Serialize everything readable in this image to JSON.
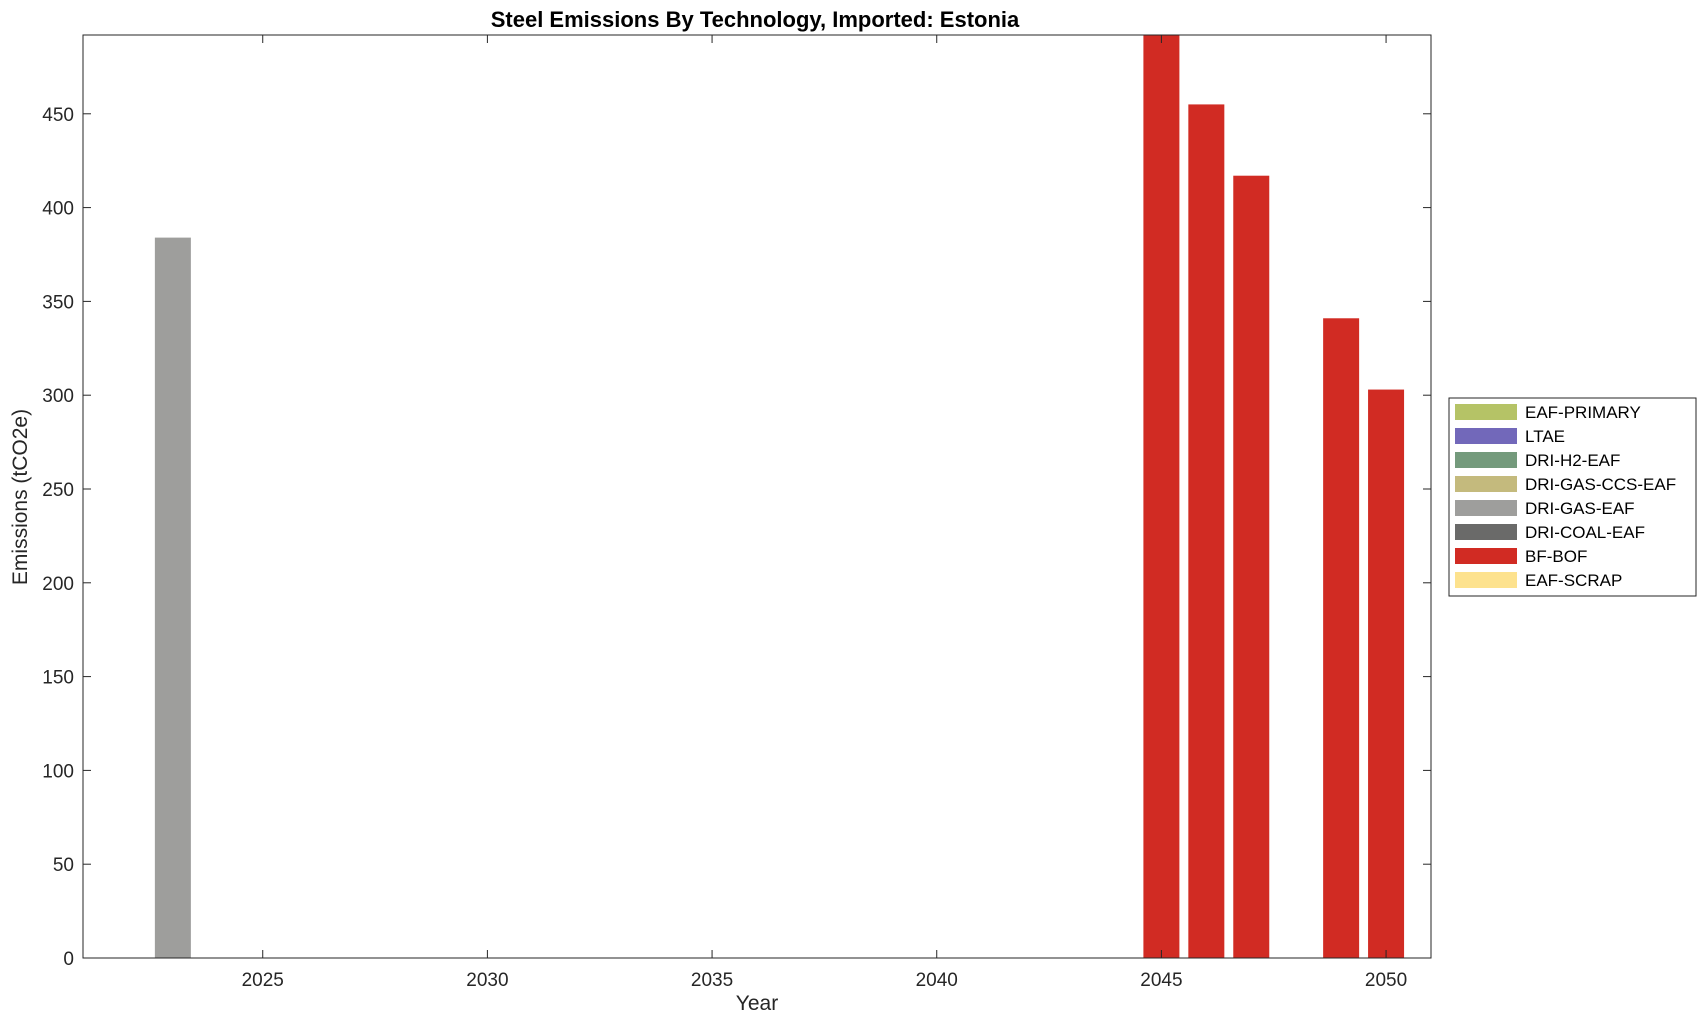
{
  "chart_data": {
    "type": "bar",
    "stacked": true,
    "title": "Steel Emissions By Technology, Imported: Estonia",
    "xlabel": "Year",
    "ylabel": "Emissions (tCO2e)",
    "xlim": [
      2021,
      2051
    ],
    "ylim": [
      0,
      492
    ],
    "xticks": [
      2025,
      2030,
      2035,
      2040,
      2045,
      2050
    ],
    "yticks": [
      0,
      50,
      100,
      150,
      200,
      250,
      300,
      350,
      400,
      450
    ],
    "grid": false,
    "legend_position": "right",
    "categories": [
      2023,
      2024,
      2025,
      2026,
      2027,
      2028,
      2029,
      2030,
      2031,
      2032,
      2033,
      2034,
      2035,
      2036,
      2037,
      2038,
      2039,
      2040,
      2041,
      2042,
      2043,
      2044,
      2045,
      2046,
      2047,
      2048,
      2049,
      2050
    ],
    "series": [
      {
        "name": "EAF-PRIMARY",
        "color": "#B5C366",
        "values": [
          0,
          0,
          0,
          0,
          0,
          0,
          0,
          0,
          0,
          0,
          0,
          0,
          0,
          0,
          0,
          0,
          0,
          0,
          0,
          0,
          0,
          0,
          0,
          0,
          0,
          0,
          0,
          0
        ]
      },
      {
        "name": "LTAE",
        "color": "#7268BA",
        "values": [
          0,
          0,
          0,
          0,
          0,
          0,
          0,
          0,
          0,
          0,
          0,
          0,
          0,
          0,
          0,
          0,
          0,
          0,
          0,
          0,
          0,
          0,
          0,
          0,
          0,
          0,
          0,
          0
        ]
      },
      {
        "name": "DRI-H2-EAF",
        "color": "#749A7C",
        "values": [
          0,
          0,
          0,
          0,
          0,
          0,
          0,
          0,
          0,
          0,
          0,
          0,
          0,
          0,
          0,
          0,
          0,
          0,
          0,
          0,
          0,
          0,
          0,
          0,
          0,
          0,
          0,
          0
        ]
      },
      {
        "name": "DRI-GAS-CCS-EAF",
        "color": "#C4BA7D",
        "values": [
          0,
          0,
          0,
          0,
          0,
          0,
          0,
          0,
          0,
          0,
          0,
          0,
          0,
          0,
          0,
          0,
          0,
          0,
          0,
          0,
          0,
          0,
          0,
          0,
          0,
          0,
          0,
          0
        ]
      },
      {
        "name": "DRI-GAS-EAF",
        "color": "#9E9E9C",
        "values": [
          384,
          0,
          0,
          0,
          0,
          0,
          0,
          0,
          0,
          0,
          0,
          0,
          0,
          0,
          0,
          0,
          0,
          0,
          0,
          0,
          0,
          0,
          0,
          0,
          0,
          0,
          0,
          0
        ]
      },
      {
        "name": "DRI-COAL-EAF",
        "color": "#6A6A69",
        "values": [
          0,
          0,
          0,
          0,
          0,
          0,
          0,
          0,
          0,
          0,
          0,
          0,
          0,
          0,
          0,
          0,
          0,
          0,
          0,
          0,
          0,
          0,
          0,
          0,
          0,
          0,
          0,
          0
        ]
      },
      {
        "name": "BF-BOF",
        "color": "#D12B23",
        "values": [
          0,
          0,
          0,
          0,
          0,
          0,
          0,
          0,
          0,
          0,
          0,
          0,
          0,
          0,
          0,
          0,
          0,
          0,
          0,
          0,
          0,
          0,
          492,
          455,
          417,
          0,
          341,
          303
        ]
      },
      {
        "name": "EAF-SCRAP",
        "color": "#FDE28E",
        "values": [
          0,
          0,
          0,
          0,
          0,
          0,
          0,
          0,
          0,
          0,
          0,
          0,
          0,
          0,
          0,
          0,
          0,
          0,
          0,
          0,
          0,
          0,
          0,
          0,
          0,
          0,
          0,
          0
        ]
      }
    ]
  }
}
